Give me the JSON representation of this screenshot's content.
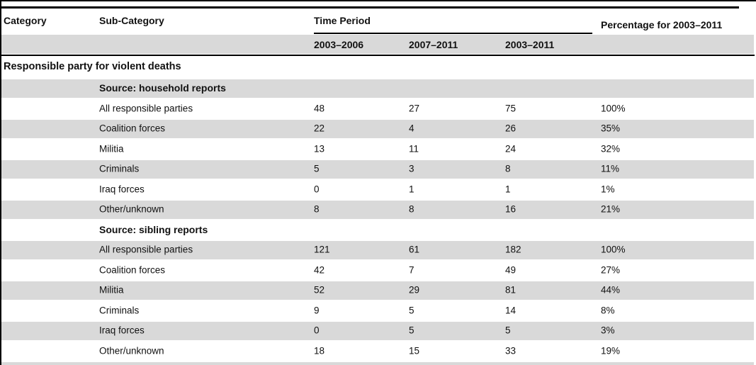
{
  "table": {
    "header": {
      "category": "Category",
      "sub_category": "Sub-Category",
      "time_period": "Time Period",
      "percentage": "Percentage for 2003–2011",
      "periods": [
        "2003–2006",
        "2007–2011",
        "2003–2011"
      ]
    },
    "section_title": "Responsible party for violent deaths",
    "rows": [
      {
        "label": "Source: household reports",
        "p1": "",
        "p2": "",
        "p3": "",
        "pct": ""
      },
      {
        "label": "All responsible parties",
        "p1": "48",
        "p2": "27",
        "p3": "75",
        "pct": "100%"
      },
      {
        "label": "Coalition forces",
        "p1": "22",
        "p2": "4",
        "p3": "26",
        "pct": "35%"
      },
      {
        "label": "Militia",
        "p1": "13",
        "p2": "11",
        "p3": "24",
        "pct": "32%"
      },
      {
        "label": "Criminals",
        "p1": "5",
        "p2": "3",
        "p3": "8",
        "pct": "11%"
      },
      {
        "label": "Iraq forces",
        "p1": "0",
        "p2": "1",
        "p3": "1",
        "pct": "1%"
      },
      {
        "label": "Other/unknown",
        "p1": "8",
        "p2": "8",
        "p3": "16",
        "pct": "21%"
      },
      {
        "label": "Source: sibling reports",
        "p1": "",
        "p2": "",
        "p3": "",
        "pct": ""
      },
      {
        "label": "All responsible parties",
        "p1": "121",
        "p2": "61",
        "p3": "182",
        "pct": "100%"
      },
      {
        "label": "Coalition forces",
        "p1": "42",
        "p2": "7",
        "p3": "49",
        "pct": "27%"
      },
      {
        "label": "Militia",
        "p1": "52",
        "p2": "29",
        "p3": "81",
        "pct": "44%"
      },
      {
        "label": "Criminals",
        "p1": "9",
        "p2": "5",
        "p3": "14",
        "pct": "8%"
      },
      {
        "label": "Iraq forces",
        "p1": "0",
        "p2": "5",
        "p3": "5",
        "pct": "3%"
      },
      {
        "label": "Other/unknown",
        "p1": "18",
        "p2": "15",
        "p3": "33",
        "pct": "19%"
      }
    ],
    "colors": {
      "row_shade": "#d9d9d9",
      "rule": "#000000"
    }
  }
}
